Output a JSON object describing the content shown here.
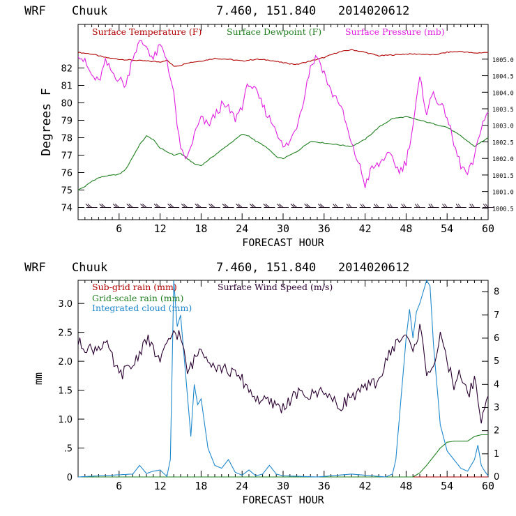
{
  "chart_data": [
    {
      "type": "line",
      "header": {
        "model": "WRF",
        "station": "Chuuk",
        "coords": "7.460, 151.840",
        "run": "2014020612"
      },
      "xlabel": "FORECAST HOUR",
      "ylabel": "Degrees F",
      "xlim": [
        0,
        60
      ],
      "ylim": [
        73.3,
        84.5
      ],
      "y2lim": [
        1000.15,
        1006.05
      ],
      "xticks": [
        "6",
        "12",
        "18",
        "24",
        "30",
        "36",
        "42",
        "48",
        "54",
        "60"
      ],
      "yticks": [
        "74",
        "75",
        "76",
        "77",
        "78",
        "79",
        "80",
        "81",
        "82"
      ],
      "y2ticks": [
        "1000.5",
        "1001.0",
        "1001.5",
        "1002.0",
        "1002.5",
        "1003.0",
        "1003.5",
        "1004.0",
        "1004.5",
        "1005.0"
      ],
      "series": [
        {
          "name": "Surface Temperature (F)",
          "color": "#b00000",
          "axis": "left",
          "x": [
            0,
            2,
            4,
            6,
            8,
            10,
            12,
            13,
            14,
            15,
            16,
            18,
            20,
            22,
            24,
            26,
            28,
            30,
            32,
            34,
            36,
            38,
            40,
            42,
            44,
            46,
            48,
            50,
            52,
            54,
            56,
            58,
            60
          ],
          "y": [
            82.9,
            82.8,
            82.6,
            82.5,
            82.45,
            82.4,
            82.35,
            82.45,
            82.1,
            82.15,
            82.3,
            82.4,
            82.55,
            82.5,
            82.4,
            82.5,
            82.45,
            82.3,
            82.2,
            82.4,
            82.6,
            82.9,
            83.05,
            82.9,
            82.7,
            82.75,
            82.8,
            82.8,
            82.75,
            82.9,
            82.95,
            82.85,
            82.9
          ]
        },
        {
          "name": "Surface Dewpoint (F)",
          "color": "#208020",
          "axis": "left",
          "x": [
            0,
            1,
            2,
            3,
            4,
            5,
            6,
            7,
            8,
            9,
            10,
            11,
            12,
            13,
            14,
            15,
            16,
            17,
            18,
            19,
            20,
            21,
            22,
            23,
            24,
            25,
            26,
            27,
            28,
            29,
            30,
            32,
            34,
            36,
            38,
            40,
            42,
            44,
            46,
            48,
            50,
            52,
            54,
            56,
            58,
            60
          ],
          "y": [
            75.0,
            75.2,
            75.5,
            75.7,
            75.8,
            75.85,
            75.9,
            76.2,
            76.9,
            77.6,
            78.1,
            77.9,
            77.4,
            77.2,
            77.0,
            77.1,
            76.8,
            76.5,
            76.4,
            76.7,
            77.0,
            77.3,
            77.6,
            77.9,
            78.2,
            78.1,
            77.8,
            77.6,
            77.3,
            76.9,
            76.8,
            77.2,
            77.8,
            77.7,
            77.6,
            77.5,
            77.9,
            78.6,
            79.1,
            79.2,
            79.0,
            78.8,
            78.6,
            78.1,
            77.5,
            78.0
          ]
        },
        {
          "name": "Surface Pressure (mb)",
          "color": "#e020e0",
          "axis": "right",
          "x": [
            0,
            1,
            2,
            3,
            4,
            5,
            6,
            7,
            8,
            9,
            10,
            11,
            12,
            13,
            14,
            15,
            16,
            17,
            18,
            19,
            20,
            21,
            22,
            23,
            24,
            25,
            26,
            27,
            28,
            29,
            30,
            31,
            32,
            33,
            34,
            35,
            36,
            37,
            38,
            39,
            40,
            41,
            42,
            43,
            44,
            45,
            46,
            47,
            48,
            49,
            50,
            51,
            52,
            53,
            54,
            55,
            56,
            57,
            58,
            59,
            60
          ],
          "y": [
            1005.2,
            1004.9,
            1004.5,
            1004.3,
            1004.9,
            1004.6,
            1004.4,
            1004.2,
            1005.1,
            1005.5,
            1005.4,
            1005.0,
            1005.4,
            1005.0,
            1003.9,
            1002.2,
            1002.0,
            1002.7,
            1003.2,
            1003.0,
            1003.3,
            1003.6,
            1003.5,
            1003.2,
            1003.6,
            1004.3,
            1004.0,
            1003.6,
            1003.2,
            1002.9,
            1002.3,
            1002.5,
            1003.0,
            1003.8,
            1004.8,
            1005.1,
            1004.6,
            1004.0,
            1003.8,
            1003.2,
            1002.4,
            1001.9,
            1001.2,
            1001.7,
            1001.8,
            1002.1,
            1002.0,
            1001.6,
            1001.9,
            1003.0,
            1004.4,
            1003.4,
            1004.0,
            1003.6,
            1003.3,
            1002.4,
            1001.8,
            1001.5,
            1002.0,
            1003.0,
            1003.4
          ]
        }
      ],
      "wind_barbs": {
        "name": "Surface wind barbs",
        "color": "#1a001a",
        "hours": [
          2,
          4,
          6,
          8,
          10,
          12,
          14,
          16,
          18,
          20,
          22,
          24,
          26,
          28,
          30,
          32,
          34,
          36,
          38,
          40,
          42,
          44,
          46,
          48,
          50,
          52,
          54,
          56,
          58,
          60
        ]
      }
    },
    {
      "type": "line",
      "header": {
        "model": "WRF",
        "station": "Chuuk",
        "coords": "7.460, 151.840",
        "run": "2014020612"
      },
      "xlabel": "FORECAST HOUR",
      "ylabel": "mm",
      "xlim": [
        0,
        60
      ],
      "ylim": [
        0,
        3.4
      ],
      "y2lim": [
        0,
        8.5
      ],
      "xticks": [
        "6",
        "12",
        "18",
        "24",
        "30",
        "36",
        "42",
        "48",
        "54",
        "60"
      ],
      "yticks": [
        "0",
        "0.5",
        "1.0",
        "1.5",
        "2.0",
        "2.5",
        "3.0"
      ],
      "ytick_labels": [
        "0",
        ".5",
        "1.0",
        "1.5",
        "2.0",
        "2.5",
        "3.0"
      ],
      "y2ticks": [
        "0",
        "1",
        "2",
        "3",
        "4",
        "5",
        "6",
        "7",
        "8"
      ],
      "series": [
        {
          "name": "Sub-grid rain (mm)",
          "color": "#b00000",
          "axis": "left",
          "x": [
            0,
            60
          ],
          "y": [
            0,
            0
          ]
        },
        {
          "name": "Grid-scale rain (mm)",
          "color": "#208020",
          "axis": "left",
          "x": [
            0,
            47,
            49,
            50,
            51,
            52,
            53,
            54,
            55,
            56,
            57,
            58,
            59,
            60
          ],
          "y": [
            0,
            0,
            0,
            0.07,
            0.2,
            0.35,
            0.5,
            0.6,
            0.62,
            0.62,
            0.62,
            0.7,
            0.73,
            0.73
          ]
        },
        {
          "name": "Integrated cloud (mm)",
          "color": "#2088cc",
          "axis": "left",
          "x": [
            0,
            8,
            9,
            10,
            11,
            12,
            13,
            13.5,
            14,
            14.5,
            15,
            16,
            16.5,
            17,
            17.5,
            18,
            19,
            20,
            21,
            22,
            23,
            24,
            25,
            26,
            27,
            28,
            29,
            30,
            35,
            40,
            45,
            46,
            46.5,
            47,
            48,
            48.5,
            49,
            49.5,
            50,
            50.5,
            51,
            51.5,
            52,
            53,
            54,
            55,
            56,
            57,
            58,
            58.5,
            59,
            59.5,
            60
          ],
          "y": [
            0,
            0.05,
            0.2,
            0.06,
            0.1,
            0.12,
            0.01,
            0.3,
            3.4,
            2.6,
            2.8,
            1.4,
            0.7,
            1.6,
            1.25,
            1.35,
            0.5,
            0.2,
            0.15,
            0.3,
            0.08,
            0.03,
            0.12,
            0.02,
            0.05,
            0.2,
            0.05,
            0.02,
            0,
            0.05,
            0,
            0.05,
            0.3,
            1.0,
            2.4,
            2.9,
            2.4,
            2.85,
            3.0,
            3.2,
            3.4,
            3.3,
            2.3,
            0.9,
            0.45,
            0.3,
            0.15,
            0.1,
            0.3,
            0.55,
            0.2,
            0.1,
            0.02
          ]
        },
        {
          "name": "Surface Wind Speed (m/s)",
          "color": "#2a0030",
          "axis": "right",
          "x": [
            0,
            2,
            4,
            6,
            8,
            10,
            12,
            14,
            15,
            16,
            18,
            20,
            22,
            24,
            26,
            28,
            30,
            32,
            34,
            36,
            38,
            40,
            42,
            44,
            46,
            47,
            48,
            49,
            50,
            51,
            52,
            53,
            54,
            55,
            56,
            57,
            58,
            59,
            60
          ],
          "y": [
            5.8,
            5.5,
            5.8,
            4.4,
            4.8,
            6.0,
            5.0,
            6.3,
            6.1,
            4.5,
            5.6,
            4.8,
            4.6,
            4.2,
            3.4,
            3.2,
            3.0,
            3.6,
            3.5,
            3.8,
            3.0,
            3.5,
            3.8,
            4.2,
            5.6,
            5.9,
            6.2,
            5.3,
            6.5,
            4.6,
            4.8,
            6.0,
            5.0,
            4.0,
            4.5,
            3.5,
            4.2,
            2.5,
            3.5
          ]
        }
      ]
    }
  ]
}
